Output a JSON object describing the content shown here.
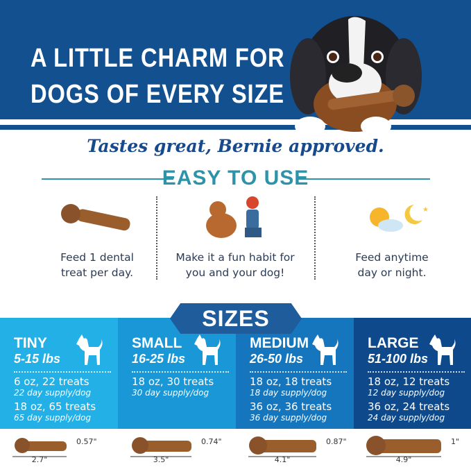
{
  "header": {
    "headline_line1": "A LITTLE CHARM FOR",
    "headline_line2": "DOGS OF EVERY SIZE",
    "bg_color": "#13508f"
  },
  "tagline": "Tastes great, Bernie approved.",
  "easy_to_use": {
    "title": "EASY TO USE",
    "color": "#2e93a8",
    "items": [
      {
        "icon": "dental-treat-icon",
        "line1": "Feed 1 dental",
        "line2": "treat per day."
      },
      {
        "icon": "dog-high-five-icon",
        "line1": "Make it a fun habit for",
        "line2": "you and your dog!"
      },
      {
        "icon": "sun-moon-icon",
        "line1": "Feed anytime",
        "line2": "day or night."
      }
    ]
  },
  "sizes": {
    "title": "SIZES",
    "tiers": [
      {
        "name": "TINY",
        "weight": "5-15 lbs",
        "color": "#23b0e6",
        "packs": [
          {
            "pack": "6 oz, 22 treats",
            "supply": "22 day supply/dog"
          },
          {
            "pack": "18 oz, 65 treats",
            "supply": "65 day supply/dog"
          }
        ],
        "length": "2.7\"",
        "height": "0.57\""
      },
      {
        "name": "SMALL",
        "weight": "16-25 lbs",
        "color": "#1a97d6",
        "packs": [
          {
            "pack": "18 oz, 30 treats",
            "supply": "30 day supply/dog"
          }
        ],
        "length": "3.5\"",
        "height": "0.74\""
      },
      {
        "name": "MEDIUM",
        "weight": "26-50 lbs",
        "color": "#1576be",
        "packs": [
          {
            "pack": "18 oz, 18 treats",
            "supply": "18 day supply/dog"
          },
          {
            "pack": "36 oz, 36 treats",
            "supply": "36 day supply/dog"
          }
        ],
        "length": "4.1\"",
        "height": "0.87\""
      },
      {
        "name": "LARGE",
        "weight": "51-100 lbs",
        "color": "#0e4a8b",
        "packs": [
          {
            "pack": "18 oz, 12 treats",
            "supply": "12 day supply/dog"
          },
          {
            "pack": "36 oz, 24 treats",
            "supply": "24 day supply/dog"
          }
        ],
        "length": "4.9\"",
        "height": "1\""
      }
    ]
  }
}
